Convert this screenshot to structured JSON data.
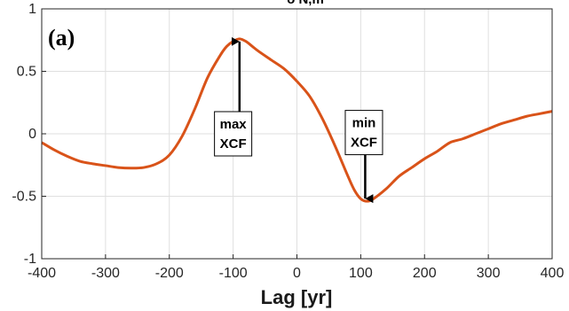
{
  "chart_data": {
    "type": "line",
    "panel_label": "(a)",
    "title_fragment": "δ N,m",
    "xlabel": "Lag [yr]",
    "ylabel": "",
    "xlim": [
      -400,
      400
    ],
    "ylim": [
      -1,
      1
    ],
    "xticks": [
      -400,
      -300,
      -200,
      -100,
      0,
      100,
      200,
      300,
      400
    ],
    "yticks": [
      -1,
      -0.5,
      0,
      0.5,
      1
    ],
    "xtick_labels": [
      "-400",
      "-300",
      "-200",
      "-100",
      "0",
      "100",
      "200",
      "300",
      "400"
    ],
    "ytick_labels": [
      "-1",
      "-0.5",
      "0",
      "0.5",
      "1"
    ],
    "grid": true,
    "line_color": "#d95319",
    "series": [
      {
        "x": [
          -400,
          -380,
          -360,
          -340,
          -320,
          -300,
          -280,
          -260,
          -240,
          -220,
          -200,
          -180,
          -160,
          -140,
          -120,
          -110,
          -100,
          -90,
          -80,
          -70,
          -60,
          -40,
          -20,
          0,
          20,
          40,
          60,
          80,
          90,
          100,
          110,
          120,
          140,
          160,
          180,
          200,
          220,
          240,
          260,
          280,
          300,
          320,
          340,
          360,
          380,
          400
        ],
        "y": [
          -0.07,
          -0.13,
          -0.18,
          -0.22,
          -0.24,
          -0.255,
          -0.27,
          -0.275,
          -0.27,
          -0.24,
          -0.17,
          -0.02,
          0.2,
          0.45,
          0.63,
          0.7,
          0.74,
          0.76,
          0.74,
          0.7,
          0.66,
          0.59,
          0.52,
          0.42,
          0.3,
          0.12,
          -0.1,
          -0.34,
          -0.45,
          -0.52,
          -0.54,
          -0.52,
          -0.44,
          -0.34,
          -0.27,
          -0.2,
          -0.14,
          -0.07,
          -0.04,
          0.0,
          0.04,
          0.08,
          0.11,
          0.14,
          0.16,
          0.18
        ]
      }
    ],
    "annotations": [
      {
        "text": [
          "max",
          "XCF"
        ],
        "point_x": -90,
        "point_y": 0.76,
        "box_x": -100,
        "box_y": 0.0
      },
      {
        "text": [
          "min",
          "XCF"
        ],
        "point_x": 107,
        "point_y": -0.54,
        "box_x": 105,
        "box_y": 0.01
      }
    ]
  }
}
